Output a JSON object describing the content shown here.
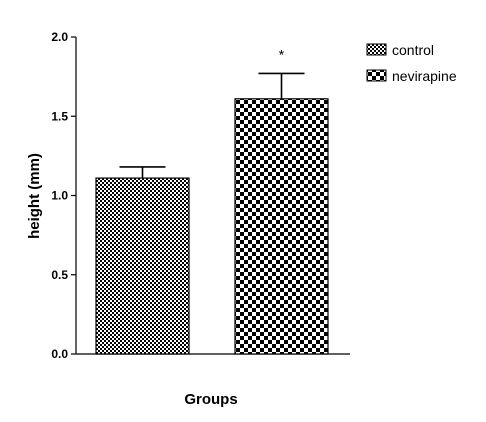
{
  "chart_data": {
    "type": "bar",
    "categories": [
      "control",
      "nevirapine"
    ],
    "values": [
      1.11,
      1.61
    ],
    "errors": [
      0.07,
      0.16
    ],
    "title": "",
    "xlabel": "Groups",
    "ylabel": "height (mm)",
    "ylim": [
      0,
      2.0
    ],
    "yticks": [
      "0.0",
      "0.5",
      "1.0",
      "1.5",
      "2.0"
    ],
    "ytick_values": [
      0,
      0.5,
      1.0,
      1.5,
      2.0
    ],
    "annotations": [
      {
        "category": "nevirapine",
        "text": "*"
      }
    ],
    "legend": {
      "placement": "top-right",
      "entries": [
        "control",
        "nevirapine"
      ]
    },
    "grid": false
  }
}
